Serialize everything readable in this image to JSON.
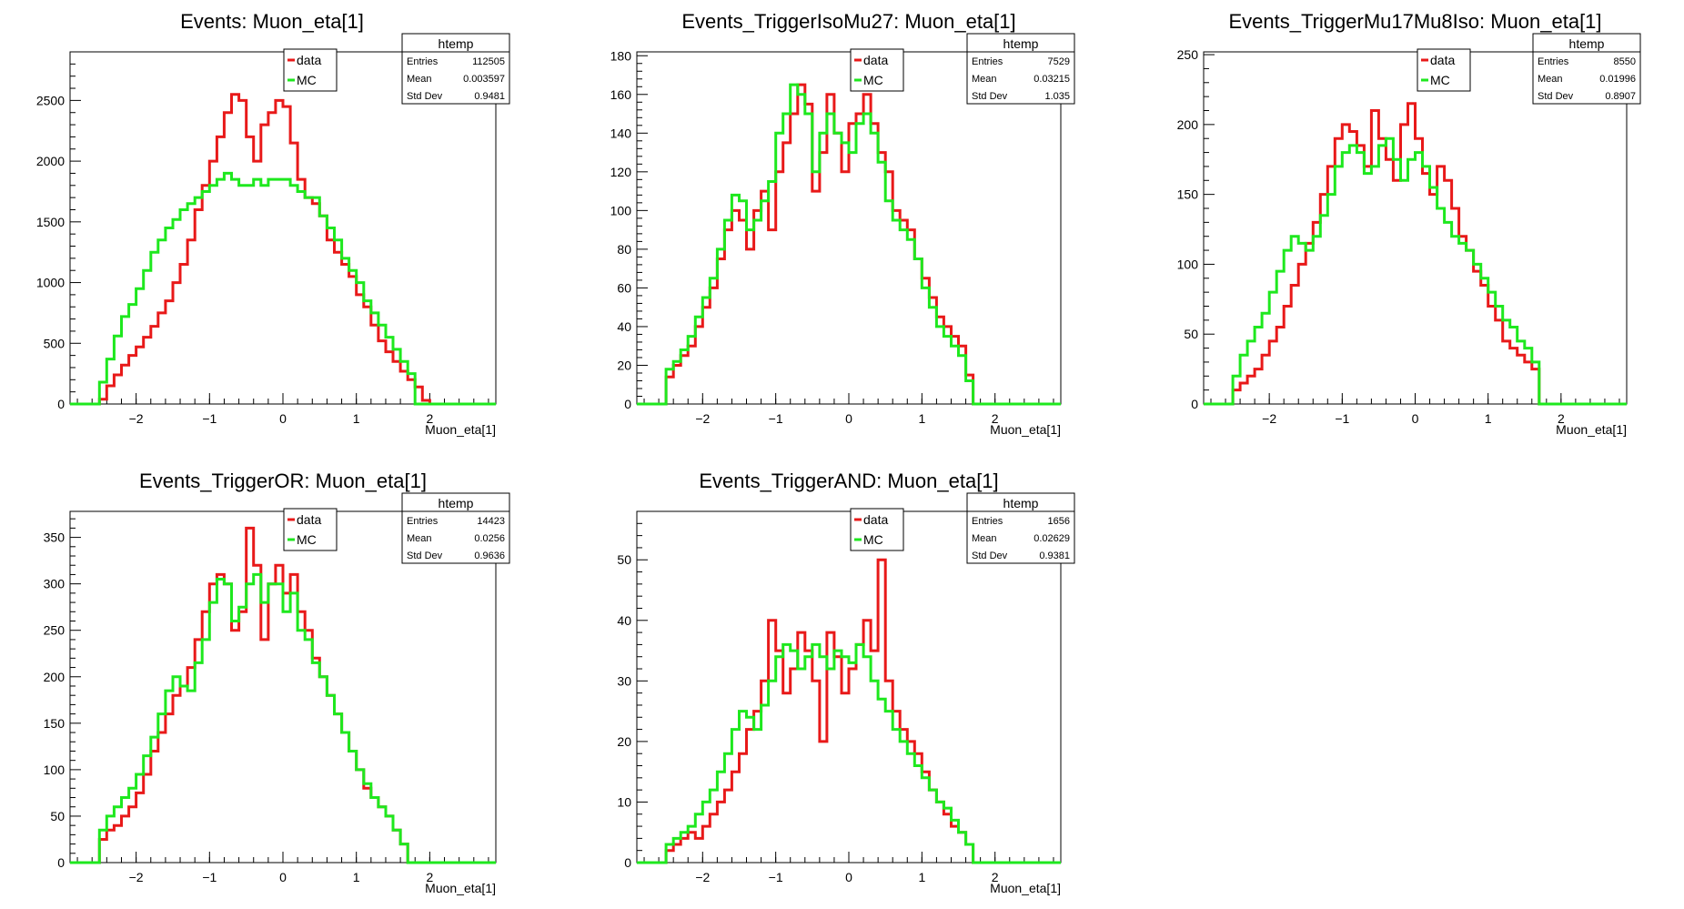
{
  "colors": {
    "data": "#e81919",
    "mc": "#1ee81e",
    "frame": "#000000"
  },
  "chart_data": [
    {
      "type": "histogram",
      "title": "Events: Muon_eta[1]",
      "xlabel": "Muon_eta[1]",
      "xlim": [
        -2.9,
        2.9
      ],
      "ylim": [
        0,
        2900
      ],
      "xticks": [
        -2,
        -1,
        0,
        1,
        2
      ],
      "yticks": [
        0,
        500,
        1000,
        1500,
        2000,
        2500
      ],
      "bin_edges_start": -2.9,
      "bin_width": 0.1,
      "legend": {
        "placement": "top-center",
        "entries": [
          "data",
          "MC"
        ]
      },
      "stats": {
        "header": "htemp",
        "rows": [
          [
            "Entries",
            "112505"
          ],
          [
            "Mean",
            "0.003597"
          ],
          [
            "Std Dev",
            "0.9481"
          ]
        ]
      },
      "series": [
        {
          "name": "data",
          "values": [
            0,
            0,
            0,
            0,
            40,
            150,
            240,
            320,
            400,
            470,
            550,
            640,
            750,
            850,
            1000,
            1150,
            1350,
            1600,
            1800,
            2000,
            2200,
            2400,
            2550,
            2500,
            2200,
            2000,
            2300,
            2400,
            2500,
            2450,
            2150,
            1850,
            1700,
            1650,
            1550,
            1350,
            1250,
            1150,
            1050,
            900,
            800,
            650,
            520,
            430,
            350,
            270,
            200,
            140,
            30,
            0,
            0,
            0,
            0,
            0,
            0,
            0,
            0,
            0
          ]
        },
        {
          "name": "MC",
          "values": [
            0,
            0,
            0,
            0,
            180,
            370,
            560,
            720,
            820,
            950,
            1100,
            1250,
            1350,
            1450,
            1520,
            1600,
            1650,
            1700,
            1750,
            1800,
            1850,
            1900,
            1850,
            1800,
            1800,
            1850,
            1800,
            1850,
            1850,
            1850,
            1800,
            1750,
            1700,
            1700,
            1550,
            1450,
            1350,
            1200,
            1100,
            1000,
            850,
            750,
            650,
            550,
            450,
            350,
            250,
            0,
            0,
            0,
            0,
            0,
            0,
            0,
            0,
            0,
            0,
            0
          ]
        }
      ]
    },
    {
      "type": "histogram",
      "title": "Events_TriggerIsoMu27: Muon_eta[1]",
      "xlabel": "Muon_eta[1]",
      "xlim": [
        -2.9,
        2.9
      ],
      "ylim": [
        0,
        182
      ],
      "xticks": [
        -2,
        -1,
        0,
        1,
        2
      ],
      "yticks": [
        0,
        20,
        40,
        60,
        80,
        100,
        120,
        140,
        160,
        180
      ],
      "bin_edges_start": -2.9,
      "bin_width": 0.1,
      "legend": {
        "placement": "top-center",
        "entries": [
          "data",
          "MC"
        ]
      },
      "stats": {
        "header": "htemp",
        "rows": [
          [
            "Entries",
            "7529"
          ],
          [
            "Mean",
            "0.03215"
          ],
          [
            "Std Dev",
            "1.035"
          ]
        ]
      },
      "series": [
        {
          "name": "data",
          "values": [
            0,
            0,
            0,
            0,
            14,
            20,
            25,
            30,
            40,
            50,
            60,
            75,
            90,
            100,
            95,
            80,
            100,
            110,
            90,
            120,
            135,
            150,
            165,
            155,
            110,
            130,
            160,
            140,
            120,
            145,
            150,
            160,
            145,
            130,
            120,
            100,
            95,
            90,
            75,
            65,
            55,
            45,
            40,
            35,
            30,
            15,
            0,
            0,
            0,
            0,
            0,
            0,
            0,
            0,
            0,
            0,
            0,
            0
          ]
        },
        {
          "name": "MC",
          "values": [
            0,
            0,
            0,
            0,
            18,
            22,
            28,
            35,
            45,
            55,
            65,
            80,
            95,
            108,
            105,
            90,
            95,
            105,
            115,
            140,
            150,
            165,
            160,
            150,
            120,
            140,
            150,
            140,
            135,
            130,
            145,
            150,
            140,
            125,
            105,
            95,
            90,
            85,
            75,
            60,
            50,
            40,
            35,
            30,
            25,
            12,
            0,
            0,
            0,
            0,
            0,
            0,
            0,
            0,
            0,
            0,
            0,
            0
          ]
        }
      ]
    },
    {
      "type": "histogram",
      "title": "Events_TriggerMu17Mu8Iso: Muon_eta[1]",
      "xlabel": "Muon_eta[1]",
      "xlim": [
        -2.9,
        2.9
      ],
      "ylim": [
        0,
        252
      ],
      "xticks": [
        -2,
        -1,
        0,
        1,
        2
      ],
      "yticks": [
        0,
        50,
        100,
        150,
        200,
        250
      ],
      "bin_edges_start": -2.9,
      "bin_width": 0.1,
      "legend": {
        "placement": "top-center",
        "entries": [
          "data",
          "MC"
        ]
      },
      "stats": {
        "header": "htemp",
        "rows": [
          [
            "Entries",
            "8550"
          ],
          [
            "Mean",
            "0.01996"
          ],
          [
            "Std Dev",
            "0.8907"
          ]
        ]
      },
      "series": [
        {
          "name": "data",
          "values": [
            0,
            0,
            0,
            0,
            10,
            15,
            20,
            25,
            35,
            45,
            55,
            70,
            85,
            100,
            115,
            130,
            150,
            170,
            190,
            200,
            195,
            185,
            170,
            210,
            190,
            175,
            160,
            200,
            215,
            190,
            165,
            150,
            170,
            160,
            140,
            120,
            110,
            95,
            85,
            70,
            60,
            45,
            40,
            35,
            30,
            25,
            0,
            0,
            0,
            0,
            0,
            0,
            0,
            0,
            0,
            0,
            0,
            0
          ]
        },
        {
          "name": "MC",
          "values": [
            0,
            0,
            0,
            0,
            20,
            35,
            45,
            55,
            65,
            80,
            95,
            110,
            120,
            115,
            110,
            120,
            135,
            150,
            170,
            180,
            185,
            180,
            165,
            170,
            185,
            190,
            175,
            160,
            175,
            180,
            170,
            155,
            140,
            130,
            120,
            115,
            110,
            100,
            90,
            80,
            70,
            60,
            55,
            45,
            40,
            30,
            0,
            0,
            0,
            0,
            0,
            0,
            0,
            0,
            0,
            0,
            0,
            0
          ]
        }
      ]
    },
    {
      "type": "histogram",
      "title": "Events_TriggerOR: Muon_eta[1]",
      "xlabel": "Muon_eta[1]",
      "xlim": [
        -2.9,
        2.9
      ],
      "ylim": [
        0,
        378
      ],
      "xticks": [
        -2,
        -1,
        0,
        1,
        2
      ],
      "yticks": [
        0,
        50,
        100,
        150,
        200,
        250,
        300,
        350
      ],
      "bin_edges_start": -2.9,
      "bin_width": 0.1,
      "legend": {
        "placement": "top-center",
        "entries": [
          "data",
          "MC"
        ]
      },
      "stats": {
        "header": "htemp",
        "rows": [
          [
            "Entries",
            "14423"
          ],
          [
            "Mean",
            "0.0256"
          ],
          [
            "Std Dev",
            "0.9636"
          ]
        ]
      },
      "series": [
        {
          "name": "data",
          "values": [
            0,
            0,
            0,
            0,
            25,
            35,
            40,
            50,
            60,
            75,
            95,
            120,
            140,
            160,
            180,
            190,
            210,
            240,
            270,
            300,
            310,
            300,
            250,
            270,
            360,
            320,
            240,
            300,
            320,
            290,
            310,
            270,
            250,
            220,
            200,
            180,
            160,
            140,
            120,
            100,
            80,
            70,
            60,
            50,
            35,
            20,
            0,
            0,
            0,
            0,
            0,
            0,
            0,
            0,
            0,
            0,
            0,
            0
          ]
        },
        {
          "name": "MC",
          "values": [
            0,
            0,
            0,
            0,
            35,
            50,
            60,
            70,
            80,
            95,
            115,
            135,
            160,
            185,
            200,
            190,
            185,
            215,
            240,
            280,
            305,
            300,
            260,
            275,
            300,
            310,
            280,
            300,
            300,
            270,
            290,
            250,
            240,
            215,
            200,
            180,
            160,
            140,
            120,
            100,
            85,
            70,
            60,
            50,
            35,
            20,
            0,
            0,
            0,
            0,
            0,
            0,
            0,
            0,
            0,
            0,
            0,
            0
          ]
        }
      ]
    },
    {
      "type": "histogram",
      "title": "Events_TriggerAND: Muon_eta[1]",
      "xlabel": "Muon_eta[1]",
      "xlim": [
        -2.9,
        2.9
      ],
      "ylim": [
        0,
        58
      ],
      "xticks": [
        -2,
        -1,
        0,
        1,
        2
      ],
      "yticks": [
        0,
        10,
        20,
        30,
        40,
        50
      ],
      "bin_edges_start": -2.9,
      "bin_width": 0.1,
      "legend": {
        "placement": "top-center",
        "entries": [
          "data",
          "MC"
        ]
      },
      "stats": {
        "header": "htemp",
        "rows": [
          [
            "Entries",
            "1656"
          ],
          [
            "Mean",
            "0.02629"
          ],
          [
            "Std Dev",
            "0.9381"
          ]
        ]
      },
      "series": [
        {
          "name": "data",
          "values": [
            0,
            0,
            0,
            0,
            2,
            3,
            4,
            5,
            4,
            6,
            8,
            10,
            12,
            15,
            18,
            22,
            25,
            30,
            40,
            35,
            28,
            32,
            38,
            35,
            30,
            20,
            38,
            34,
            28,
            32,
            36,
            40,
            35,
            50,
            30,
            25,
            22,
            20,
            18,
            15,
            12,
            10,
            8,
            6,
            5,
            3,
            0,
            0,
            0,
            0,
            0,
            0,
            0,
            0,
            0,
            0,
            0,
            0
          ]
        },
        {
          "name": "MC",
          "values": [
            0,
            0,
            0,
            0,
            3,
            4,
            5,
            6,
            8,
            10,
            12,
            15,
            18,
            22,
            25,
            24,
            22,
            26,
            30,
            34,
            36,
            35,
            32,
            34,
            36,
            34,
            32,
            35,
            34,
            33,
            36,
            34,
            30,
            27,
            25,
            22,
            20,
            18,
            16,
            14,
            12,
            10,
            9,
            7,
            5,
            3,
            0,
            0,
            0,
            0,
            0,
            0,
            0,
            0,
            0,
            0,
            0,
            0
          ]
        }
      ]
    }
  ]
}
